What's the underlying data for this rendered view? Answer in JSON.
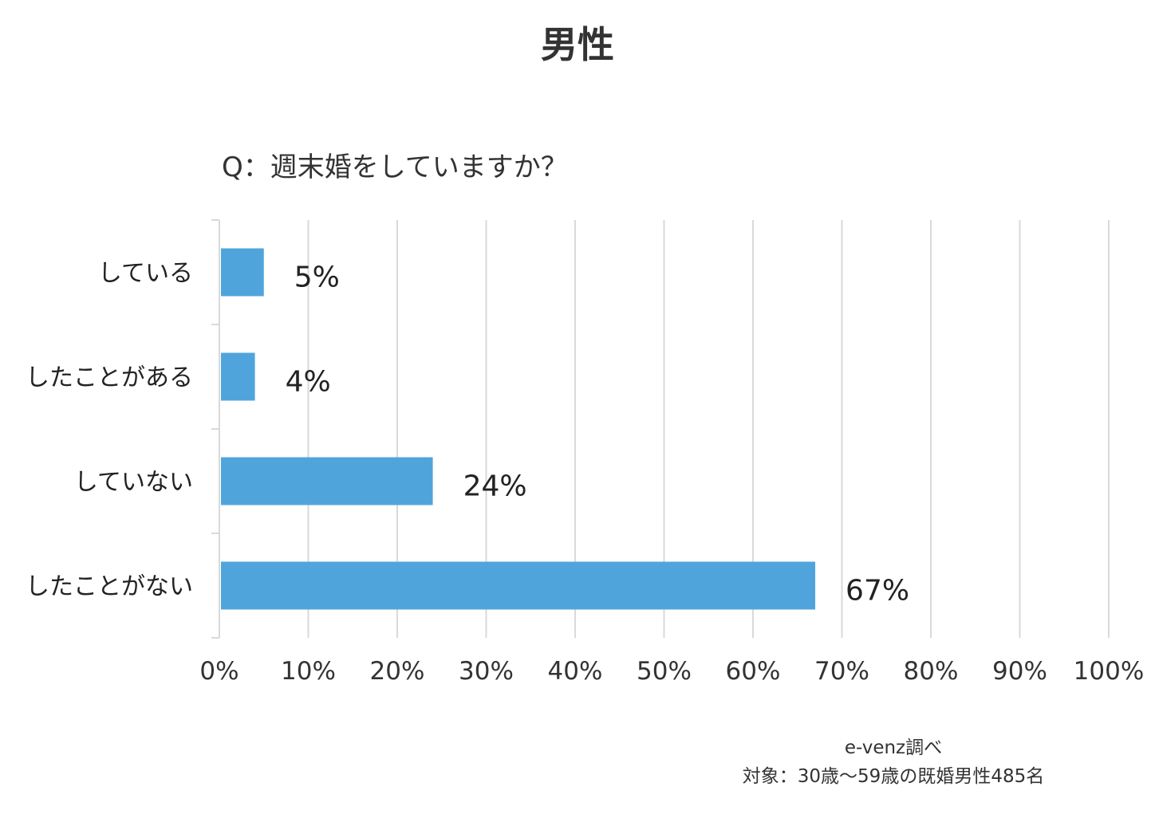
{
  "header": {
    "title": "男性"
  },
  "chart_data": {
    "type": "bar",
    "orientation": "horizontal",
    "title": "Q：週末婚をしていますか？",
    "categories": [
      "している",
      "したことがある",
      "していない",
      "したことがない"
    ],
    "values": [
      5,
      4,
      24,
      67
    ],
    "value_labels": [
      "5%",
      "4%",
      "24%",
      "67%"
    ],
    "xlim": [
      0,
      100
    ],
    "x_ticks": [
      "0%",
      "10%",
      "20%",
      "30%",
      "40%",
      "50%",
      "60%",
      "70%",
      "80%",
      "90%",
      "100%"
    ],
    "grid": true,
    "legend": "none",
    "bar_color": "#4fa5db",
    "grid_color": "#d9d9d9"
  },
  "footer": {
    "source": "e-venz調べ",
    "target": "対象：30歳〜59歳の既婚男性485名"
  }
}
